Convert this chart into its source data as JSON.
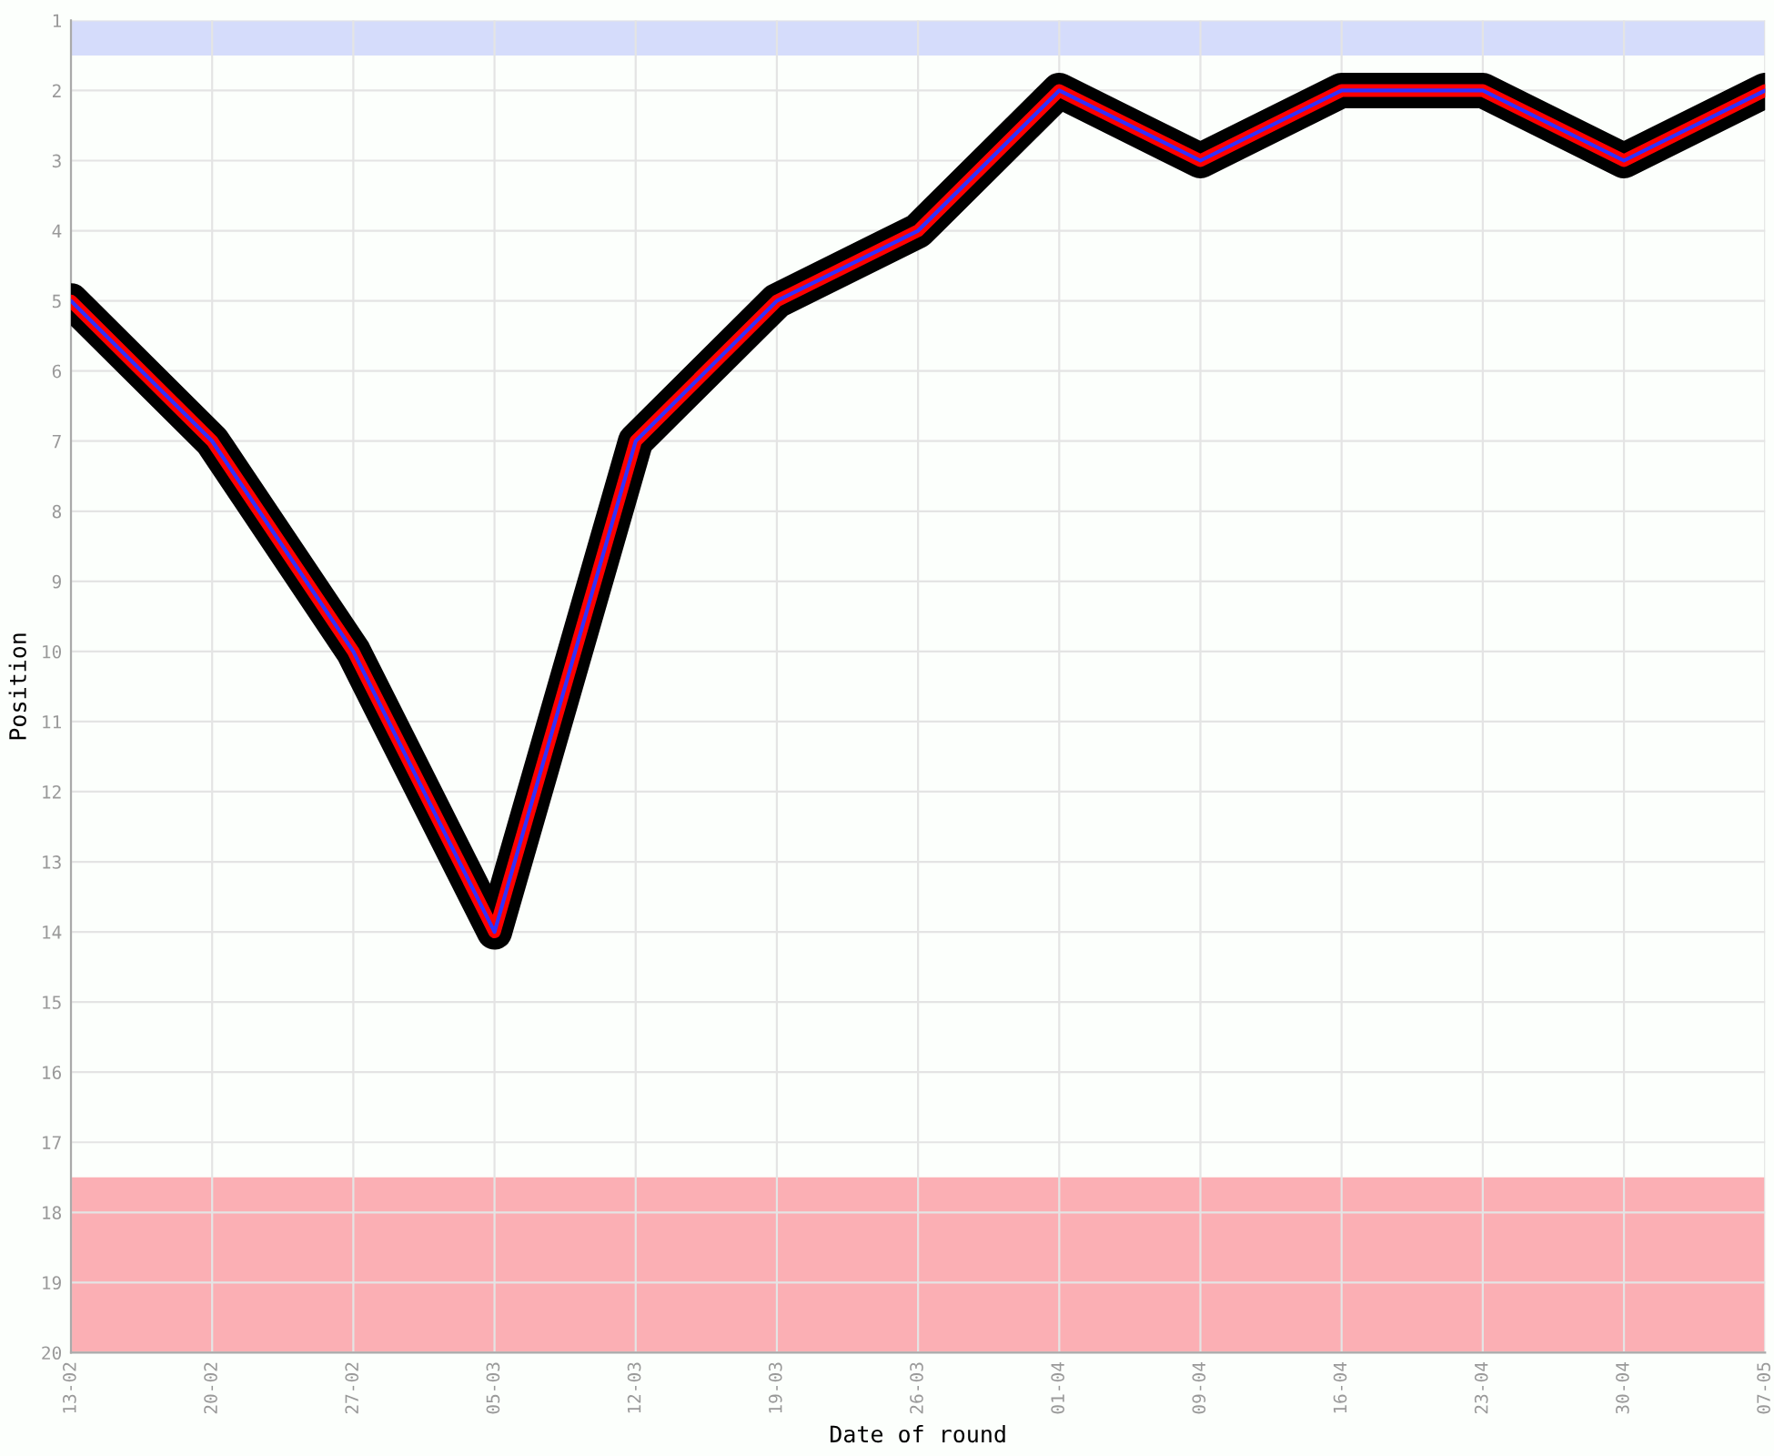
{
  "chart_data": {
    "type": "line",
    "xlabel": "Date of round",
    "ylabel": "Position",
    "categories": [
      "13-02",
      "20-02",
      "27-02",
      "05-03",
      "12-03",
      "19-03",
      "26-03",
      "01-04",
      "09-04",
      "16-04",
      "23-04",
      "30-04",
      "07-05"
    ],
    "series": [
      {
        "color": "#ff0000",
        "values": [
          5,
          7,
          10,
          14,
          7,
          5,
          4,
          2,
          3,
          2,
          2,
          3,
          2
        ]
      }
    ],
    "ylim": [
      20,
      1
    ],
    "yticks": [
      1,
      2,
      3,
      4,
      5,
      6,
      7,
      8,
      9,
      10,
      11,
      12,
      13,
      14,
      15,
      16,
      17,
      18,
      19,
      20
    ],
    "bands": [
      {
        "axis": "y",
        "from": 1,
        "to": 1.5,
        "color": "#d5dcfb"
      },
      {
        "axis": "y",
        "from": 17.5,
        "to": 20,
        "color": "#fbafb4"
      }
    ],
    "grid": true,
    "marker": "none",
    "line_style": "solid"
  }
}
